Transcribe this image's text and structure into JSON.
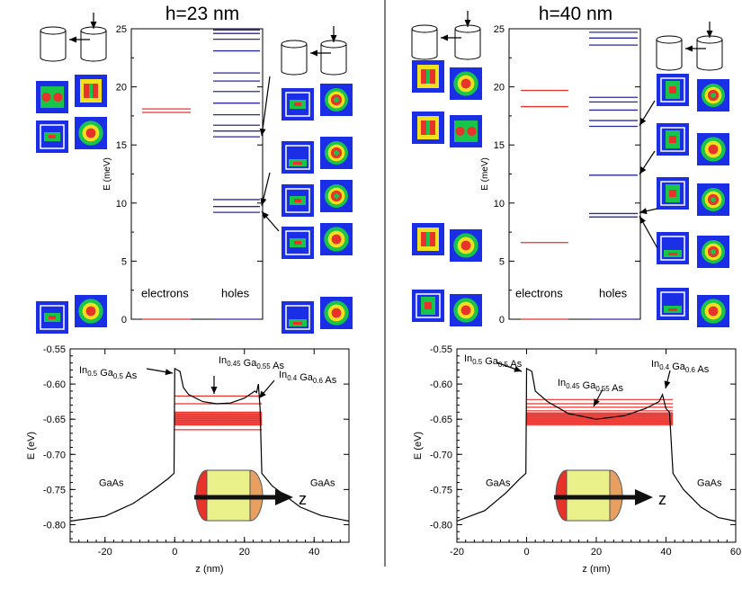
{
  "panels": [
    {
      "title": "h=23 nm",
      "top": {
        "ylabel": "E  (meV)",
        "ylim": [
          0,
          25
        ],
        "yticks": [
          "0",
          "5",
          "10",
          "15",
          "20",
          "25"
        ],
        "electrons_label": "electrons",
        "holes_label": "holes",
        "electron_levels": [
          0,
          17.8,
          18.1
        ],
        "hole_levels": [
          0,
          9.2,
          9.7,
          10.3,
          15.7,
          16.2,
          16.7,
          17.6,
          18.6,
          19.6,
          20.5,
          21.2,
          23.1,
          24.1,
          24.6,
          24.9
        ],
        "arrow_targets": [
          15.7,
          9.7,
          9.2
        ]
      },
      "bottom": {
        "ylabel": "E  (eV)",
        "xlabel": "z  (nm)",
        "xlim": [
          -30,
          50
        ],
        "xticks": [
          "-20",
          "0",
          "20",
          "40"
        ],
        "ylim": [
          -0.825,
          -0.55
        ],
        "yticks": [
          "-0.55",
          "-0.60",
          "-0.65",
          "-0.70",
          "-0.75",
          "-0.80"
        ],
        "labels": {
          "gaas_left": "GaAs",
          "gaas_right": "GaAs",
          "in05": "In0.5 Ga0.5 As",
          "in045": "In0.45 Ga0.55 As",
          "in04": "In0.4 Ga0.6 As",
          "z": "z"
        },
        "potential_profile": [
          [
            -30,
            -0.795
          ],
          [
            -20,
            -0.788
          ],
          [
            -12,
            -0.77
          ],
          [
            -6,
            -0.75
          ],
          [
            -2,
            -0.735
          ],
          [
            -0.2,
            -0.727
          ],
          [
            0,
            -0.578
          ],
          [
            1.5,
            -0.582
          ],
          [
            2.5,
            -0.605
          ],
          [
            4,
            -0.615
          ],
          [
            8,
            -0.625
          ],
          [
            12,
            -0.628
          ],
          [
            16,
            -0.627
          ],
          [
            20,
            -0.62
          ],
          [
            23,
            -0.61
          ],
          [
            23.5,
            -0.612
          ],
          [
            24,
            -0.6
          ],
          [
            24.5,
            -0.635
          ],
          [
            25,
            -0.727
          ],
          [
            28,
            -0.745
          ],
          [
            32,
            -0.76
          ],
          [
            36,
            -0.775
          ],
          [
            42,
            -0.787
          ],
          [
            50,
            -0.795
          ]
        ],
        "levels_x_range": [
          0,
          25
        ],
        "levels": [
          -0.617,
          -0.628,
          -0.64,
          -0.643,
          -0.646,
          -0.649,
          -0.652,
          -0.655,
          -0.658,
          -0.665
        ]
      }
    },
    {
      "title": "h=40 nm",
      "top": {
        "ylabel": "E  (meV)",
        "ylim": [
          0,
          25
        ],
        "yticks": [
          "0",
          "5",
          "10",
          "15",
          "20",
          "25"
        ],
        "electrons_label": "electrons",
        "holes_label": "holes",
        "electron_levels": [
          0,
          6.6,
          18.3,
          19.7
        ],
        "hole_levels": [
          0,
          8.8,
          9.1,
          12.4,
          16.6,
          17.1,
          18.0,
          18.7,
          19.1,
          23.6,
          24.2,
          24.7
        ],
        "arrow_targets": [
          16.6,
          12.4,
          9.1,
          8.8
        ]
      },
      "bottom": {
        "ylabel": "E  (eV)",
        "xlabel": "z  (nm)",
        "xlim": [
          -20,
          60
        ],
        "xticks": [
          "-20",
          "0",
          "20",
          "40",
          "60"
        ],
        "ylim": [
          -0.825,
          -0.55
        ],
        "yticks": [
          "-0.55",
          "-0.60",
          "-0.65",
          "-0.70",
          "-0.75",
          "-0.80"
        ],
        "labels": {
          "gaas_left": "GaAs",
          "gaas_right": "GaAs",
          "in05": "In0.5 Ga0.5 As",
          "in045": "In0.45 Ga0.55 As",
          "in04": "In0.4 Ga0.6 As",
          "z": "z"
        },
        "potential_profile": [
          [
            -20,
            -0.795
          ],
          [
            -12,
            -0.78
          ],
          [
            -6,
            -0.755
          ],
          [
            -2,
            -0.735
          ],
          [
            -0.2,
            -0.727
          ],
          [
            0,
            -0.578
          ],
          [
            1.5,
            -0.582
          ],
          [
            2.5,
            -0.61
          ],
          [
            6,
            -0.625
          ],
          [
            12,
            -0.642
          ],
          [
            20,
            -0.65
          ],
          [
            28,
            -0.645
          ],
          [
            34,
            -0.635
          ],
          [
            38,
            -0.625
          ],
          [
            39,
            -0.615
          ],
          [
            40,
            -0.635
          ],
          [
            41,
            -0.64
          ],
          [
            42,
            -0.727
          ],
          [
            45,
            -0.75
          ],
          [
            50,
            -0.775
          ],
          [
            55,
            -0.79
          ],
          [
            60,
            -0.795
          ]
        ],
        "levels_x_range": [
          0,
          42
        ],
        "levels": [
          -0.622,
          -0.628,
          -0.633,
          -0.638,
          -0.641,
          -0.644,
          -0.647,
          -0.65,
          -0.653,
          -0.656
        ]
      }
    }
  ],
  "chart_data": [
    {
      "type": "line",
      "title": "h=23 nm",
      "ylabel": "E  (meV)",
      "ylim": [
        0,
        25
      ],
      "series": [
        {
          "name": "electrons",
          "values": [
            0,
            17.8,
            18.1
          ]
        },
        {
          "name": "holes",
          "values": [
            0,
            9.2,
            9.7,
            10.3,
            15.7,
            16.2,
            16.7,
            17.6,
            18.6,
            19.6,
            20.5,
            21.2,
            23.1,
            24.1,
            24.6,
            24.9
          ]
        }
      ]
    },
    {
      "type": "line",
      "xlabel": "z  (nm)",
      "ylabel": "E  (eV)",
      "xlim": [
        -30,
        50
      ],
      "ylim": [
        -0.825,
        -0.55
      ],
      "series": [
        {
          "x": [
            -30,
            -20,
            -12,
            -6,
            -2,
            0,
            0,
            4,
            12,
            20,
            24,
            25,
            25,
            32,
            42,
            50
          ],
          "values": [
            -0.795,
            -0.788,
            -0.77,
            -0.75,
            -0.735,
            -0.727,
            -0.578,
            -0.615,
            -0.628,
            -0.62,
            -0.6,
            -0.635,
            -0.727,
            -0.76,
            -0.787,
            -0.795
          ]
        }
      ]
    },
    {
      "type": "line",
      "title": "h=40 nm",
      "ylabel": "E  (meV)",
      "ylim": [
        0,
        25
      ],
      "series": [
        {
          "name": "electrons",
          "values": [
            0,
            6.6,
            18.3,
            19.7
          ]
        },
        {
          "name": "holes",
          "values": [
            0,
            8.8,
            9.1,
            12.4,
            16.6,
            17.1,
            18.0,
            18.7,
            19.1,
            23.6,
            24.2,
            24.7
          ]
        }
      ]
    },
    {
      "type": "line",
      "xlabel": "z  (nm)",
      "ylabel": "E  (eV)",
      "xlim": [
        -20,
        60
      ],
      "ylim": [
        -0.825,
        -0.55
      ],
      "series": [
        {
          "x": [
            -20,
            -12,
            -6,
            -2,
            0,
            0,
            6,
            12,
            20,
            28,
            34,
            39,
            40,
            42,
            42,
            50,
            60
          ],
          "values": [
            -0.795,
            -0.78,
            -0.755,
            -0.735,
            -0.727,
            -0.578,
            -0.625,
            -0.642,
            -0.65,
            -0.645,
            -0.635,
            -0.615,
            -0.635,
            -0.64,
            -0.727,
            -0.775,
            -0.795
          ]
        }
      ]
    }
  ],
  "colors": {
    "electron": "#e8332b",
    "hole": "#2a2a9a",
    "axis": "#000000",
    "wf_bg": "#1a2ee6"
  }
}
